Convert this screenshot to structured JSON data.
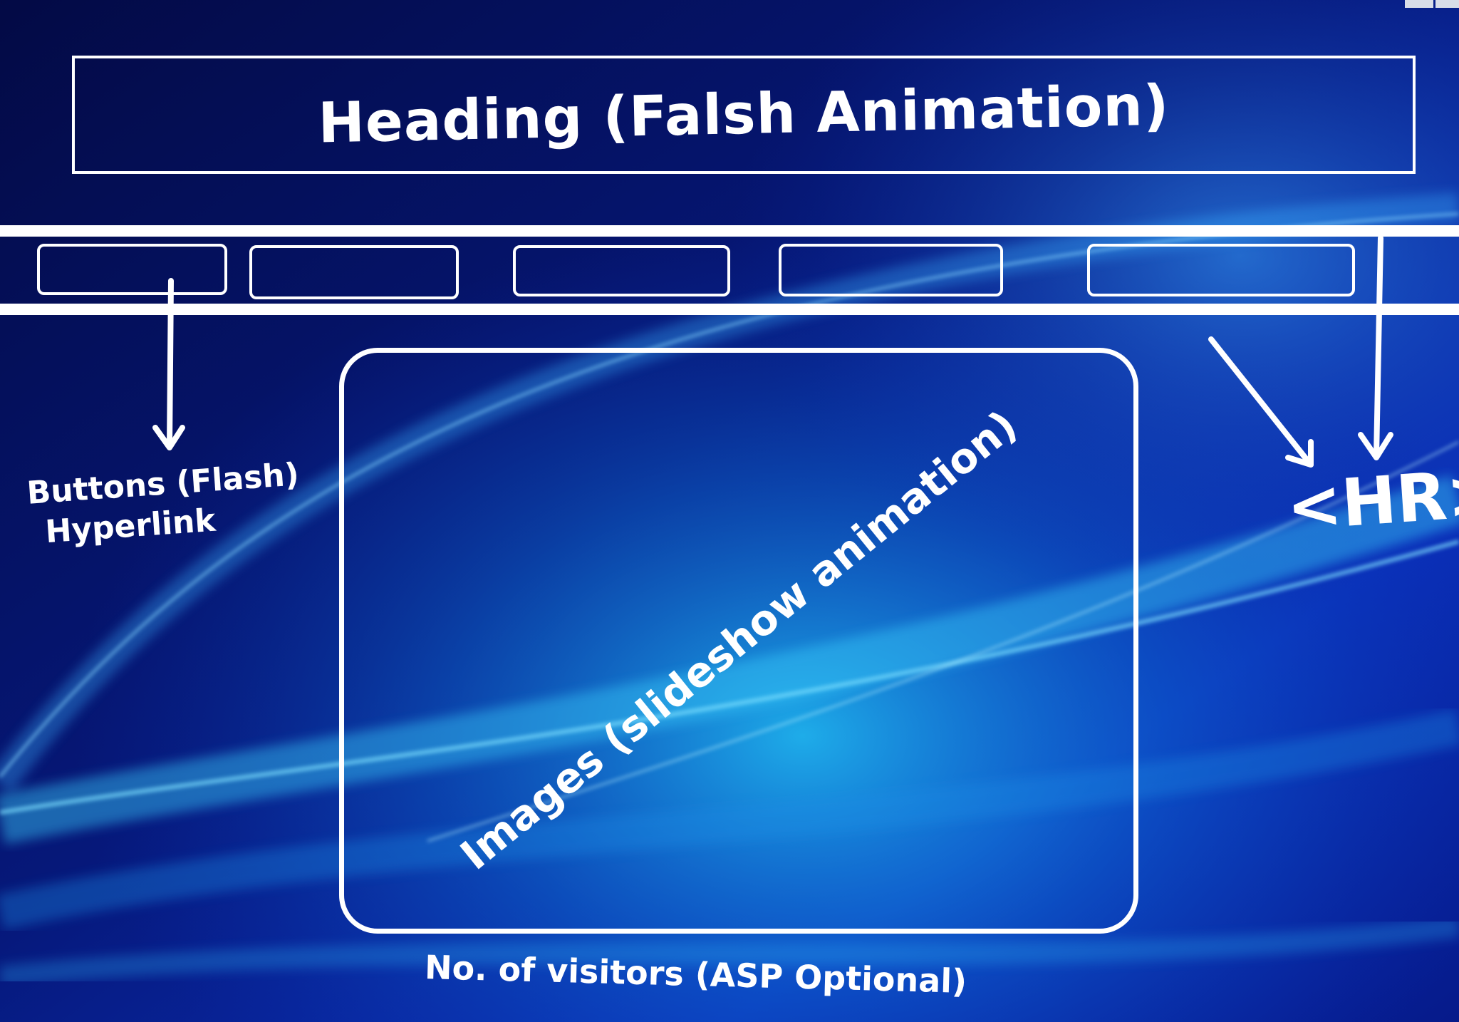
{
  "heading": {
    "text": "Heading (Falsh Animation)"
  },
  "nav": {
    "buttons": [
      "",
      "",
      "",
      "",
      ""
    ]
  },
  "slideshow": {
    "label": "Images (slideshow animation)"
  },
  "annotations": {
    "buttons_line1": "Buttons (Flash)",
    "buttons_line2": "Hyperlink",
    "hr": "<HR>",
    "visitors": "No. of visitors (ASP Optional)"
  },
  "colors": {
    "background_dark": "#040c4e",
    "background_mid": "#0a2fb8",
    "glow": "#1fb4f0",
    "line": "#ffffff"
  }
}
